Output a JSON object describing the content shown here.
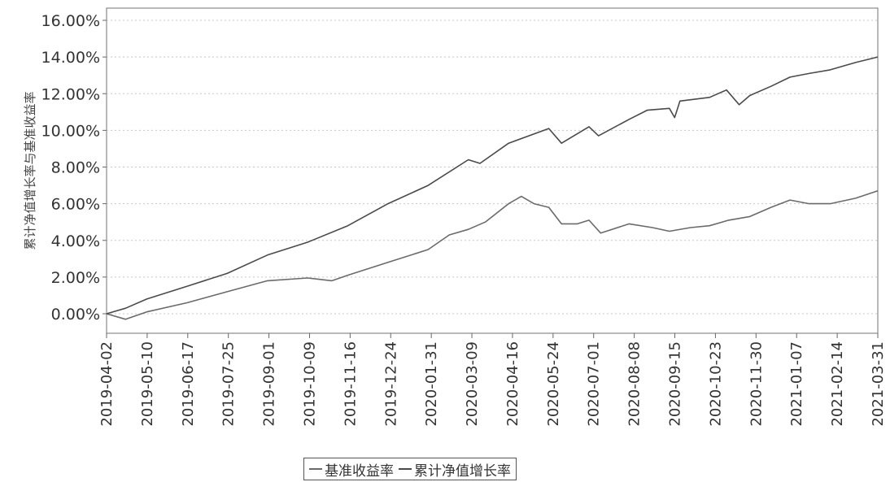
{
  "chart_data": {
    "type": "line",
    "ylabel": "累计净值增长率与基准收益率",
    "xlabel": "",
    "title": "",
    "ylim": [
      -1.0,
      16.0
    ],
    "yticks": [
      "0.00%",
      "2.00%",
      "4.00%",
      "6.00%",
      "8.00%",
      "10.00%",
      "12.00%",
      "14.00%",
      "16.00%"
    ],
    "ytick_values": [
      0,
      2,
      4,
      6,
      8,
      10,
      12,
      14,
      16
    ],
    "x_tick_labels": [
      "2019-04-02",
      "2019-05-10",
      "2019-06-17",
      "2019-07-25",
      "2019-09-01",
      "2019-10-09",
      "2019-11-16",
      "2019-12-24",
      "2020-01-31",
      "2020-03-09",
      "2020-04-16",
      "2020-05-24",
      "2020-07-01",
      "2020-08-08",
      "2020-09-15",
      "2020-10-23",
      "2020-11-30",
      "2021-01-07",
      "2021-02-14",
      "2021-03-31"
    ],
    "grid": true,
    "legend_position": "bottom-center",
    "series": [
      {
        "name": "基准收益率",
        "color": "#6a6a6a",
        "points": [
          [
            "2019-04-02",
            0.0
          ],
          [
            "2019-04-20",
            -0.3
          ],
          [
            "2019-05-10",
            0.1
          ],
          [
            "2019-06-17",
            0.6
          ],
          [
            "2019-07-25",
            1.2
          ],
          [
            "2019-09-01",
            1.8
          ],
          [
            "2019-10-09",
            1.95
          ],
          [
            "2019-11-01",
            1.8
          ],
          [
            "2019-11-16",
            2.1
          ],
          [
            "2019-12-24",
            2.8
          ],
          [
            "2020-01-31",
            3.5
          ],
          [
            "2020-02-20",
            4.3
          ],
          [
            "2020-03-09",
            4.6
          ],
          [
            "2020-03-25",
            5.0
          ],
          [
            "2020-04-16",
            6.0
          ],
          [
            "2020-04-28",
            6.4
          ],
          [
            "2020-05-10",
            6.0
          ],
          [
            "2020-05-24",
            5.8
          ],
          [
            "2020-06-05",
            4.9
          ],
          [
            "2020-06-20",
            4.9
          ],
          [
            "2020-07-01",
            5.1
          ],
          [
            "2020-07-12",
            4.4
          ],
          [
            "2020-08-08",
            4.9
          ],
          [
            "2020-08-30",
            4.7
          ],
          [
            "2020-09-15",
            4.5
          ],
          [
            "2020-10-05",
            4.7
          ],
          [
            "2020-10-23",
            4.8
          ],
          [
            "2020-11-10",
            5.1
          ],
          [
            "2020-11-30",
            5.3
          ],
          [
            "2020-12-20",
            5.8
          ],
          [
            "2021-01-07",
            6.2
          ],
          [
            "2021-01-25",
            6.0
          ],
          [
            "2021-02-14",
            6.0
          ],
          [
            "2021-03-10",
            6.3
          ],
          [
            "2021-03-31",
            6.7
          ]
        ]
      },
      {
        "name": "累计净值增长率",
        "color": "#4a4a4a",
        "points": [
          [
            "2019-04-02",
            0.0
          ],
          [
            "2019-04-20",
            0.3
          ],
          [
            "2019-05-10",
            0.8
          ],
          [
            "2019-06-17",
            1.5
          ],
          [
            "2019-07-25",
            2.2
          ],
          [
            "2019-09-01",
            3.2
          ],
          [
            "2019-10-09",
            3.9
          ],
          [
            "2019-11-16",
            4.8
          ],
          [
            "2019-12-24",
            6.0
          ],
          [
            "2020-01-31",
            7.0
          ],
          [
            "2020-03-09",
            8.4
          ],
          [
            "2020-03-20",
            8.2
          ],
          [
            "2020-04-16",
            9.3
          ],
          [
            "2020-05-24",
            10.1
          ],
          [
            "2020-06-05",
            9.3
          ],
          [
            "2020-07-01",
            10.2
          ],
          [
            "2020-07-10",
            9.7
          ],
          [
            "2020-08-08",
            10.6
          ],
          [
            "2020-08-25",
            11.1
          ],
          [
            "2020-09-15",
            11.2
          ],
          [
            "2020-09-20",
            10.7
          ],
          [
            "2020-09-25",
            11.6
          ],
          [
            "2020-10-23",
            11.8
          ],
          [
            "2020-11-08",
            12.2
          ],
          [
            "2020-11-20",
            11.4
          ],
          [
            "2020-11-30",
            11.9
          ],
          [
            "2020-12-20",
            12.4
          ],
          [
            "2021-01-07",
            12.9
          ],
          [
            "2021-01-25",
            13.1
          ],
          [
            "2021-02-14",
            13.3
          ],
          [
            "2021-03-10",
            13.7
          ],
          [
            "2021-03-31",
            14.0
          ]
        ]
      }
    ]
  },
  "legend": {
    "items": [
      {
        "label": "基准收益率",
        "color": "#6a6a6a"
      },
      {
        "label": "累计净值增长率",
        "color": "#4a4a4a"
      }
    ]
  }
}
